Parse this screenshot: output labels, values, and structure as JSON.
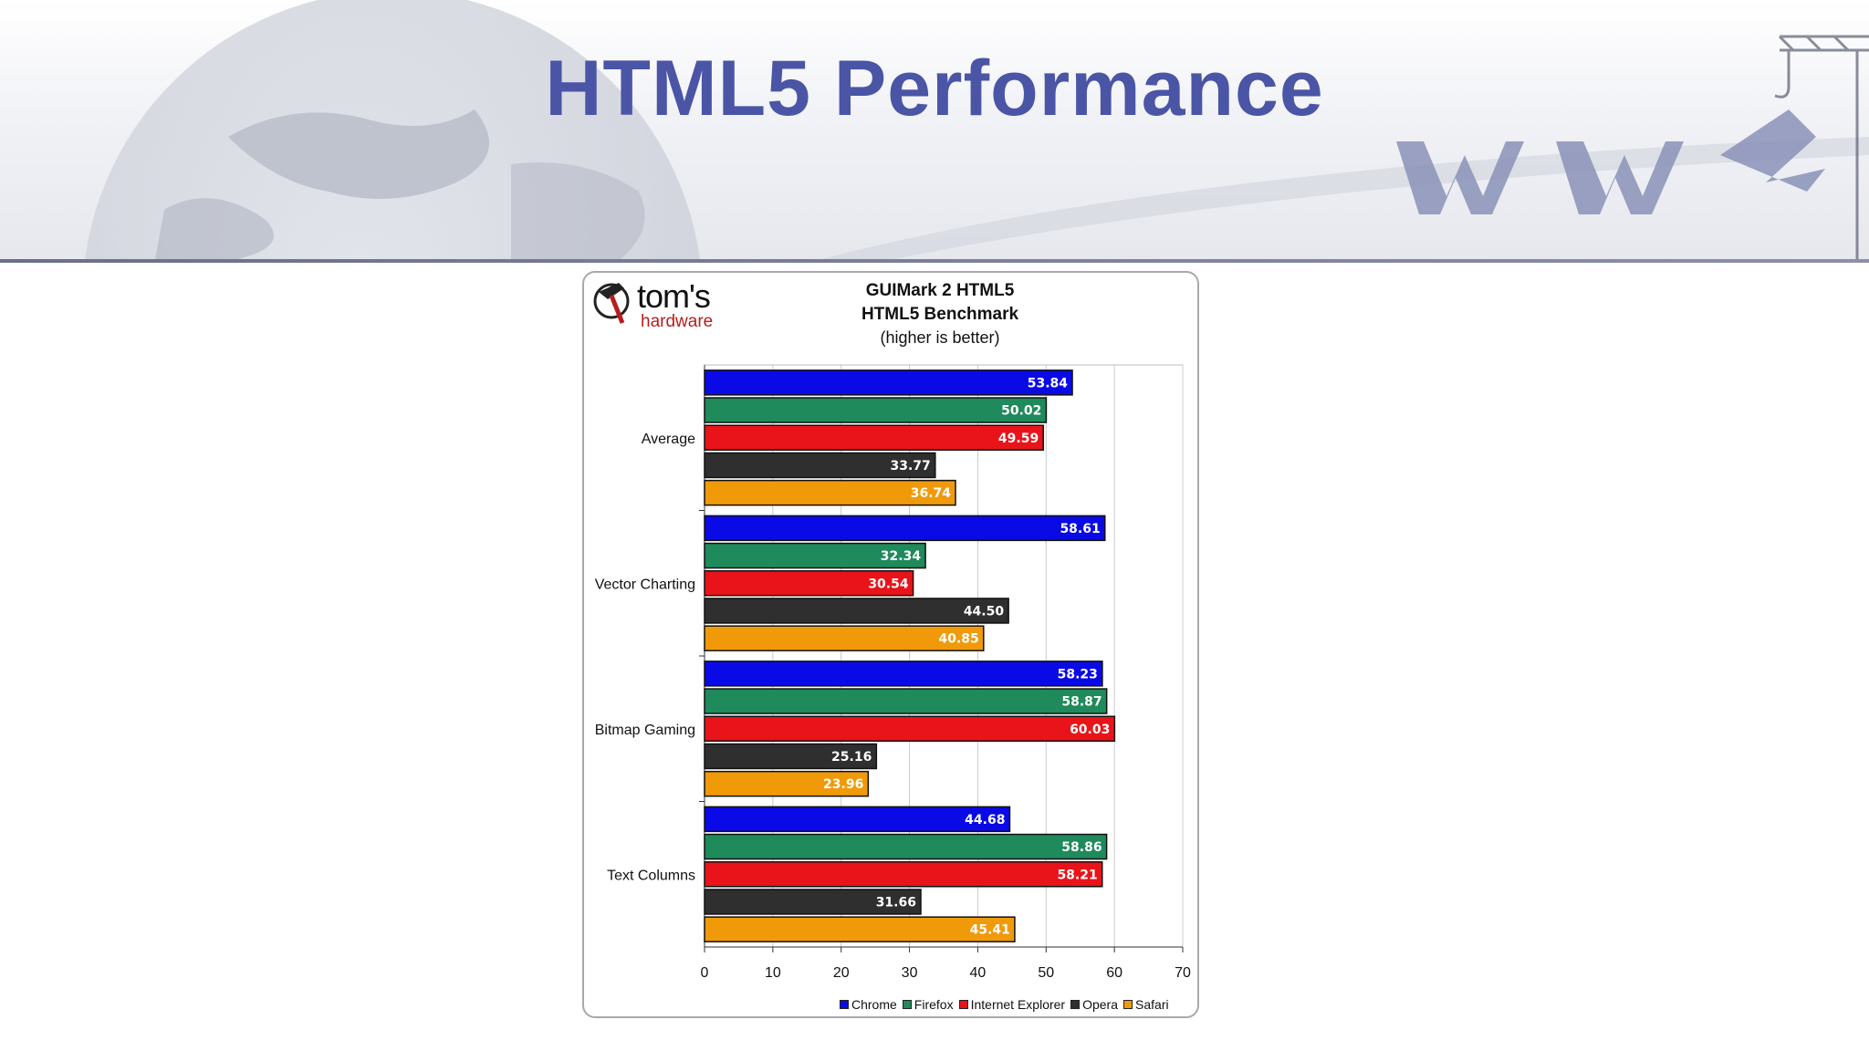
{
  "slide": {
    "title": "HTML5 Performance",
    "title_color": "#4a55a6"
  },
  "logo": {
    "main": "tom's",
    "sub": "hardware"
  },
  "chart_data": {
    "type": "bar",
    "orientation": "horizontal",
    "title": "GUIMark 2 HTML5",
    "subtitle": "HTML5 Benchmark",
    "note": "(higher is better)",
    "xlabel": "",
    "ylabel": "",
    "xlim": [
      0,
      70
    ],
    "xticks": [
      0,
      10,
      20,
      30,
      40,
      50,
      60,
      70
    ],
    "grid": true,
    "legend_position": "bottom-right",
    "categories": [
      "Average",
      "Vector Charting",
      "Bitmap Gaming",
      "Text Columns"
    ],
    "series": [
      {
        "name": "Chrome",
        "color": "#0a0ae6",
        "values": [
          53.84,
          58.61,
          58.23,
          44.68
        ],
        "labels": [
          "53.84",
          "58.61",
          "58.23",
          "44.68"
        ]
      },
      {
        "name": "Firefox",
        "color": "#1f8a5b",
        "values": [
          50.02,
          32.34,
          58.87,
          58.86
        ],
        "labels": [
          "50.02",
          "32.34",
          "58.87",
          "58.86"
        ]
      },
      {
        "name": "Internet Explorer",
        "color": "#e8141a",
        "values": [
          49.59,
          30.54,
          60.03,
          58.21
        ],
        "labels": [
          "49.59",
          "30.54",
          "60.03",
          "58.21"
        ]
      },
      {
        "name": "Opera",
        "color": "#2f2f2f",
        "values": [
          33.77,
          44.5,
          25.16,
          31.66
        ],
        "labels": [
          "33.77",
          "44.50",
          "25.16",
          "31.66"
        ]
      },
      {
        "name": "Safari",
        "color": "#f09a0a",
        "values": [
          36.74,
          40.85,
          23.96,
          45.41
        ],
        "labels": [
          "36.74",
          "40.85",
          "23.96",
          "45.41"
        ]
      }
    ]
  }
}
